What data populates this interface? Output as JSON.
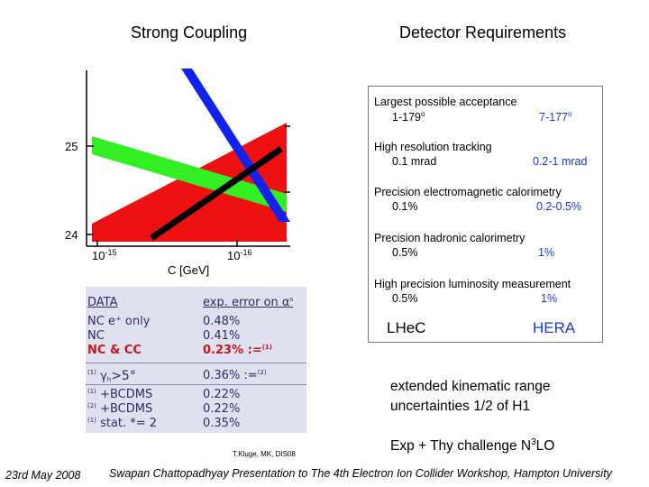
{
  "titles": {
    "left": "Strong Coupling",
    "right": "Detector Requirements"
  },
  "plot": {
    "y_ticks": [
      "25",
      "24"
    ],
    "x_tick_base": "10",
    "x_tick_1_exp": "-15",
    "x_tick_2_exp": "-16",
    "x_label": "C [GeV]",
    "colors": {
      "red": "#ee1111",
      "green": "#33ee22",
      "blue": "#1122ee",
      "black": "#000000"
    }
  },
  "table": {
    "header": {
      "label": "DATA",
      "value": "exp. error on α",
      "value_sub": "s"
    },
    "rows": [
      {
        "prefix": "",
        "label": "NC e⁺ only",
        "value": "0.48%",
        "note": ""
      },
      {
        "prefix": "",
        "label": "NC",
        "value": "0.41%",
        "note": ""
      },
      {
        "prefix": "",
        "label": "NC & CC",
        "value": "0.23% :=",
        "note": "(1)"
      },
      {
        "prefix": "(1)",
        "label": "γ",
        "label_sub": "h",
        "label_tail": ">5°",
        "value": "0.36% :=",
        "note": "(2)"
      },
      {
        "prefix": "(1)",
        "label": "+BCDMS",
        "value": "0.22%",
        "note": ""
      },
      {
        "prefix": "(2)",
        "label": "+BCDMS",
        "value": "0.22%",
        "note": ""
      },
      {
        "prefix": "(1)",
        "label": "stat. *= 2",
        "value": "0.35%",
        "note": ""
      }
    ]
  },
  "detector": {
    "items": [
      {
        "title": "Largest possible acceptance",
        "lhec": "1-179",
        "lhec_sup": "o",
        "hera": "7-177",
        "hera_sup": "o"
      },
      {
        "title": "High resolution tracking",
        "lhec": "0.1 mrad",
        "hera": "0.2-1 mrad"
      },
      {
        "title": "Precision electromagnetic calorimetry",
        "lhec": "0.1%",
        "hera": "0.2-0.5%"
      },
      {
        "title": "Precision hadronic calorimetry",
        "lhec": "0.5%",
        "hera": "1%"
      },
      {
        "title": "High precision luminosity measurement",
        "lhec": "0.5%",
        "hera": "1%"
      }
    ],
    "footer_left": "LHeC",
    "footer_right": "HERA",
    "accent": "#1a36d9"
  },
  "notes": {
    "line1": "extended kinematic range",
    "line2": "uncertainties 1/2 of H1",
    "line3_pre": "Exp + Thy challenge N",
    "line3_sup": "3",
    "line3_post": "LO"
  },
  "credit": "T.Kluge, MK, DIS08",
  "footer": {
    "date": "23rd May 2008",
    "talk": "Swapan Chattopadhyay Presentation to The 4th Electron Ion Collider Workshop, Hampton University"
  }
}
